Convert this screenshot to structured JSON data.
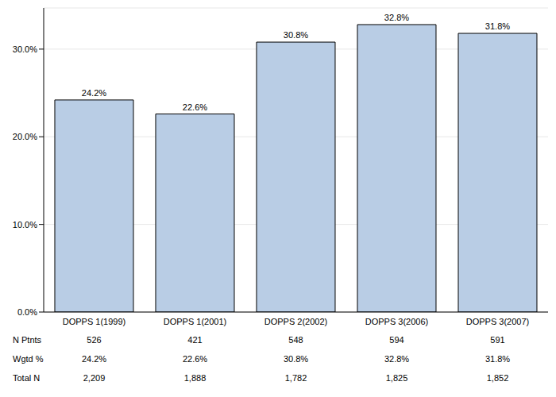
{
  "chart_data": {
    "type": "bar",
    "categories": [
      "DOPPS 1(1999)",
      "DOPPS 1(2001)",
      "DOPPS 2(2002)",
      "DOPPS 3(2006)",
      "DOPPS 3(2007)"
    ],
    "values": [
      24.2,
      22.6,
      30.8,
      32.8,
      31.8
    ],
    "value_labels": [
      "24.2%",
      "22.6%",
      "30.8%",
      "32.8%",
      "31.8%"
    ],
    "color": "#b9cde5",
    "ylim": [
      0,
      34.7
    ],
    "yticks": [
      {
        "value": 0,
        "label": "0.0%"
      },
      {
        "value": 10,
        "label": "10.0%"
      },
      {
        "value": 20,
        "label": "20.0%"
      },
      {
        "value": 30,
        "label": "30.0%"
      }
    ],
    "grid": true,
    "data_labels": true
  },
  "table": {
    "rows": [
      {
        "label": "N Ptnts",
        "values": [
          "526",
          "421",
          "548",
          "594",
          "591"
        ]
      },
      {
        "label": "Wgtd %",
        "values": [
          "24.2%",
          "22.6%",
          "30.8%",
          "32.8%",
          "31.8%"
        ]
      },
      {
        "label": "Total N",
        "values": [
          "2,209",
          "1,888",
          "1,782",
          "1,825",
          "1,852"
        ]
      }
    ]
  }
}
